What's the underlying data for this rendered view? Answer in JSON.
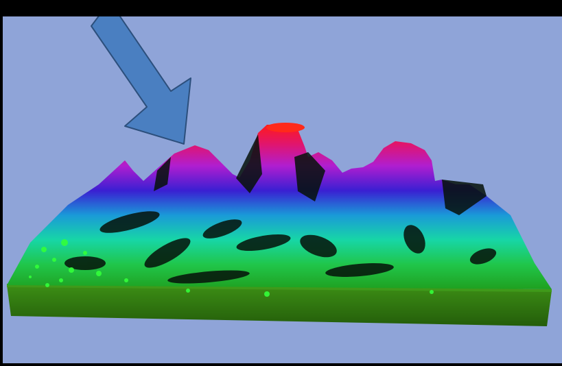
{
  "scene": {
    "background_color": "#8fa4d8",
    "frame_color": "#000000",
    "base_color": "#2f7a10",
    "arrow_color": "#4a7fc1",
    "arrow_outline": "#2c4f7c",
    "peak_top_color": "#ff1a1a",
    "peak_mid_color": "#b21bd0",
    "valley_color": "#18d8a8",
    "low_color": "#22c81e"
  },
  "icons": {
    "arrow": "arrow-down-right-icon"
  }
}
